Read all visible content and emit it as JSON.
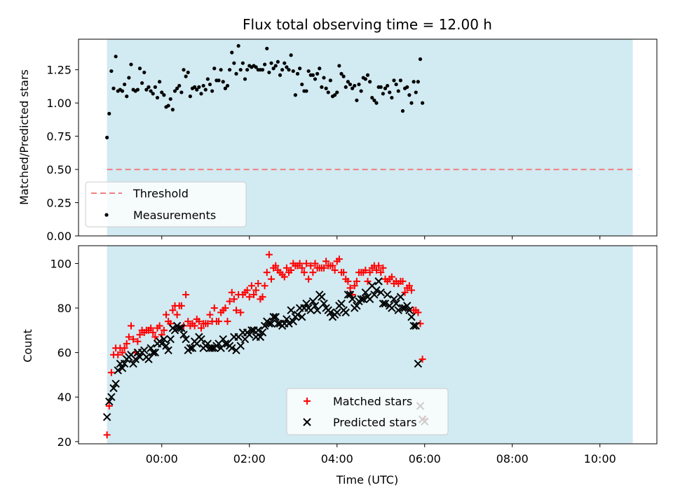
{
  "chart_data": [
    {
      "type": "scatter",
      "title": "Flux total observing time = 12.00 h",
      "xlabel": "",
      "ylabel": "Matched/Predicted stars",
      "ylim": [
        0,
        1.48
      ],
      "yticks": [
        "0.00",
        "0.25",
        "0.50",
        "0.75",
        "1.00",
        "1.25"
      ],
      "grid": false,
      "shaded_span_hours": [
        -1.25,
        10.75
      ],
      "shaded_color": "#add8e6",
      "legend_position": "lower-left",
      "threshold": {
        "name": "Threshold",
        "value": 0.5,
        "color": "#f08080",
        "style": "dashed"
      },
      "series": [
        {
          "name": "Measurements",
          "color": "#000000",
          "x_start_hours": -1.25,
          "x_step_hours": 0.05,
          "values": [
            0.74,
            0.92,
            1.24,
            1.11,
            1.35,
            1.09,
            1.1,
            1.09,
            1.14,
            1.05,
            1.19,
            1.29,
            1.1,
            1.09,
            1.1,
            1.26,
            1.15,
            1.23,
            1.1,
            1.12,
            1.09,
            1.07,
            1.12,
            1.04,
            1.16,
            1.08,
            1.06,
            0.97,
            0.98,
            1.03,
            0.95,
            1.09,
            1.11,
            1.13,
            1.08,
            1.25,
            1.2,
            1.23,
            1.05,
            1.11,
            1.12,
            1.1,
            1.12,
            1.07,
            1.13,
            1.1,
            1.18,
            1.14,
            1.09,
            1.26,
            1.17,
            1.17,
            1.25,
            1.16,
            1.11,
            1.13,
            1.25,
            1.38,
            1.3,
            1.22,
            1.43,
            1.25,
            1.3,
            1.18,
            1.25,
            1.28,
            1.27,
            1.28,
            1.27,
            1.25,
            1.25,
            1.25,
            1.29,
            1.41,
            1.23,
            1.3,
            1.26,
            1.28,
            1.31,
            1.21,
            1.25,
            1.3,
            1.27,
            1.25,
            1.36,
            1.24,
            1.06,
            1.22,
            1.26,
            1.14,
            1.09,
            1.09,
            1.24,
            1.21,
            1.21,
            1.18,
            1.22,
            1.26,
            1.12,
            1.19,
            1.11,
            1.08,
            1.17,
            1.05,
            1.06,
            1.08,
            1.28,
            1.22,
            1.2,
            1.12,
            1.16,
            1.14,
            1.11,
            1.13,
            1.02,
            1.14,
            1.09,
            1.19,
            1.18,
            1.21,
            1.16,
            1.04,
            1.02,
            1.0,
            1.12,
            1.12,
            1.07,
            1.11,
            1.13,
            1.08,
            1.04,
            1.17,
            1.14,
            1.09,
            1.17,
            0.94,
            1.11,
            1.12,
            1.06,
            1.0,
            1.16,
            1.08,
            1.16,
            1.33,
            1.0
          ]
        }
      ]
    },
    {
      "type": "scatter",
      "title": "",
      "xlabel": "Time (UTC)",
      "ylabel": "Count",
      "ylim": [
        19,
        108
      ],
      "yticks": [
        "20",
        "40",
        "60",
        "80",
        "100"
      ],
      "xticks": [
        "00:00",
        "02:00",
        "04:00",
        "06:00",
        "08:00",
        "10:00"
      ],
      "xtick_hours": [
        0,
        2,
        4,
        6,
        8,
        10
      ],
      "xlim_hours": [
        -1.9,
        11.3
      ],
      "grid": false,
      "shaded_span_hours": [
        -1.25,
        10.75
      ],
      "shaded_color": "#add8e6",
      "legend_position": "bottom-center",
      "series": [
        {
          "name": "Matched stars",
          "marker": "+",
          "color": "#ff0000",
          "x_start_hours": -1.25,
          "x_step_hours": 0.05,
          "values": [
            23,
            36,
            51,
            59,
            62,
            59,
            62,
            60,
            62,
            64,
            67,
            72,
            66,
            60,
            65,
            68,
            70,
            69,
            70,
            70,
            71,
            69,
            67,
            71,
            72,
            68,
            70,
            77,
            74,
            73,
            79,
            81,
            77,
            81,
            81,
            72,
            86,
            74,
            72,
            73,
            72,
            75,
            74,
            71,
            73,
            73,
            73,
            77,
            74,
            80,
            74,
            74,
            78,
            79,
            80,
            74,
            83,
            87,
            84,
            79,
            86,
            78,
            86,
            87,
            88,
            85,
            90,
            86,
            88,
            91,
            84,
            85,
            90,
            96,
            104,
            93,
            98,
            99,
            97,
            96,
            95,
            94,
            98,
            96,
            97,
            100,
            99,
            99,
            100,
            98,
            96,
            100,
            93,
            99,
            96,
            100,
            98,
            98,
            98,
            98,
            101,
            99,
            99,
            99,
            97,
            101,
            102,
            96,
            96,
            93,
            92,
            89,
            86,
            90,
            92,
            96,
            96,
            96,
            97,
            92,
            96,
            98,
            99,
            97,
            99,
            96,
            98,
            93,
            92,
            93,
            94,
            91,
            92,
            91,
            92,
            92,
            87,
            89,
            90,
            88,
            79,
            79,
            78,
            73,
            57,
            30
          ]
        },
        {
          "name": "Predicted stars",
          "marker": "x",
          "color": "#000000",
          "x_start_hours": -1.25,
          "x_step_hours": 0.05,
          "values": [
            31,
            38,
            40,
            44,
            46,
            52,
            55,
            53,
            55,
            57,
            58,
            59,
            55,
            57,
            60,
            58,
            60,
            61,
            58,
            57,
            62,
            60,
            60,
            64,
            65,
            64,
            66,
            63,
            61,
            66,
            71,
            70,
            72,
            71,
            71,
            68,
            66,
            61,
            62,
            62,
            65,
            64,
            67,
            66,
            62,
            63,
            64,
            62,
            62,
            62,
            63,
            64,
            62,
            66,
            64,
            64,
            63,
            62,
            67,
            61,
            67,
            63,
            69,
            66,
            69,
            68,
            70,
            70,
            67,
            70,
            67,
            69,
            72,
            74,
            73,
            73,
            76,
            76,
            73,
            73,
            72,
            73,
            75,
            73,
            79,
            74,
            76,
            77,
            80,
            76,
            80,
            82,
            80,
            79,
            83,
            81,
            79,
            86,
            85,
            82,
            80,
            79,
            78,
            76,
            77,
            78,
            81,
            82,
            79,
            78,
            86,
            86,
            84,
            80,
            81,
            83,
            84,
            84,
            87,
            85,
            84,
            90,
            86,
            88,
            92,
            87,
            82,
            82,
            86,
            81,
            80,
            84,
            82,
            79,
            85,
            80,
            80,
            81,
            79,
            76,
            72,
            72,
            55,
            36,
            30,
            29
          ]
        }
      ]
    }
  ]
}
